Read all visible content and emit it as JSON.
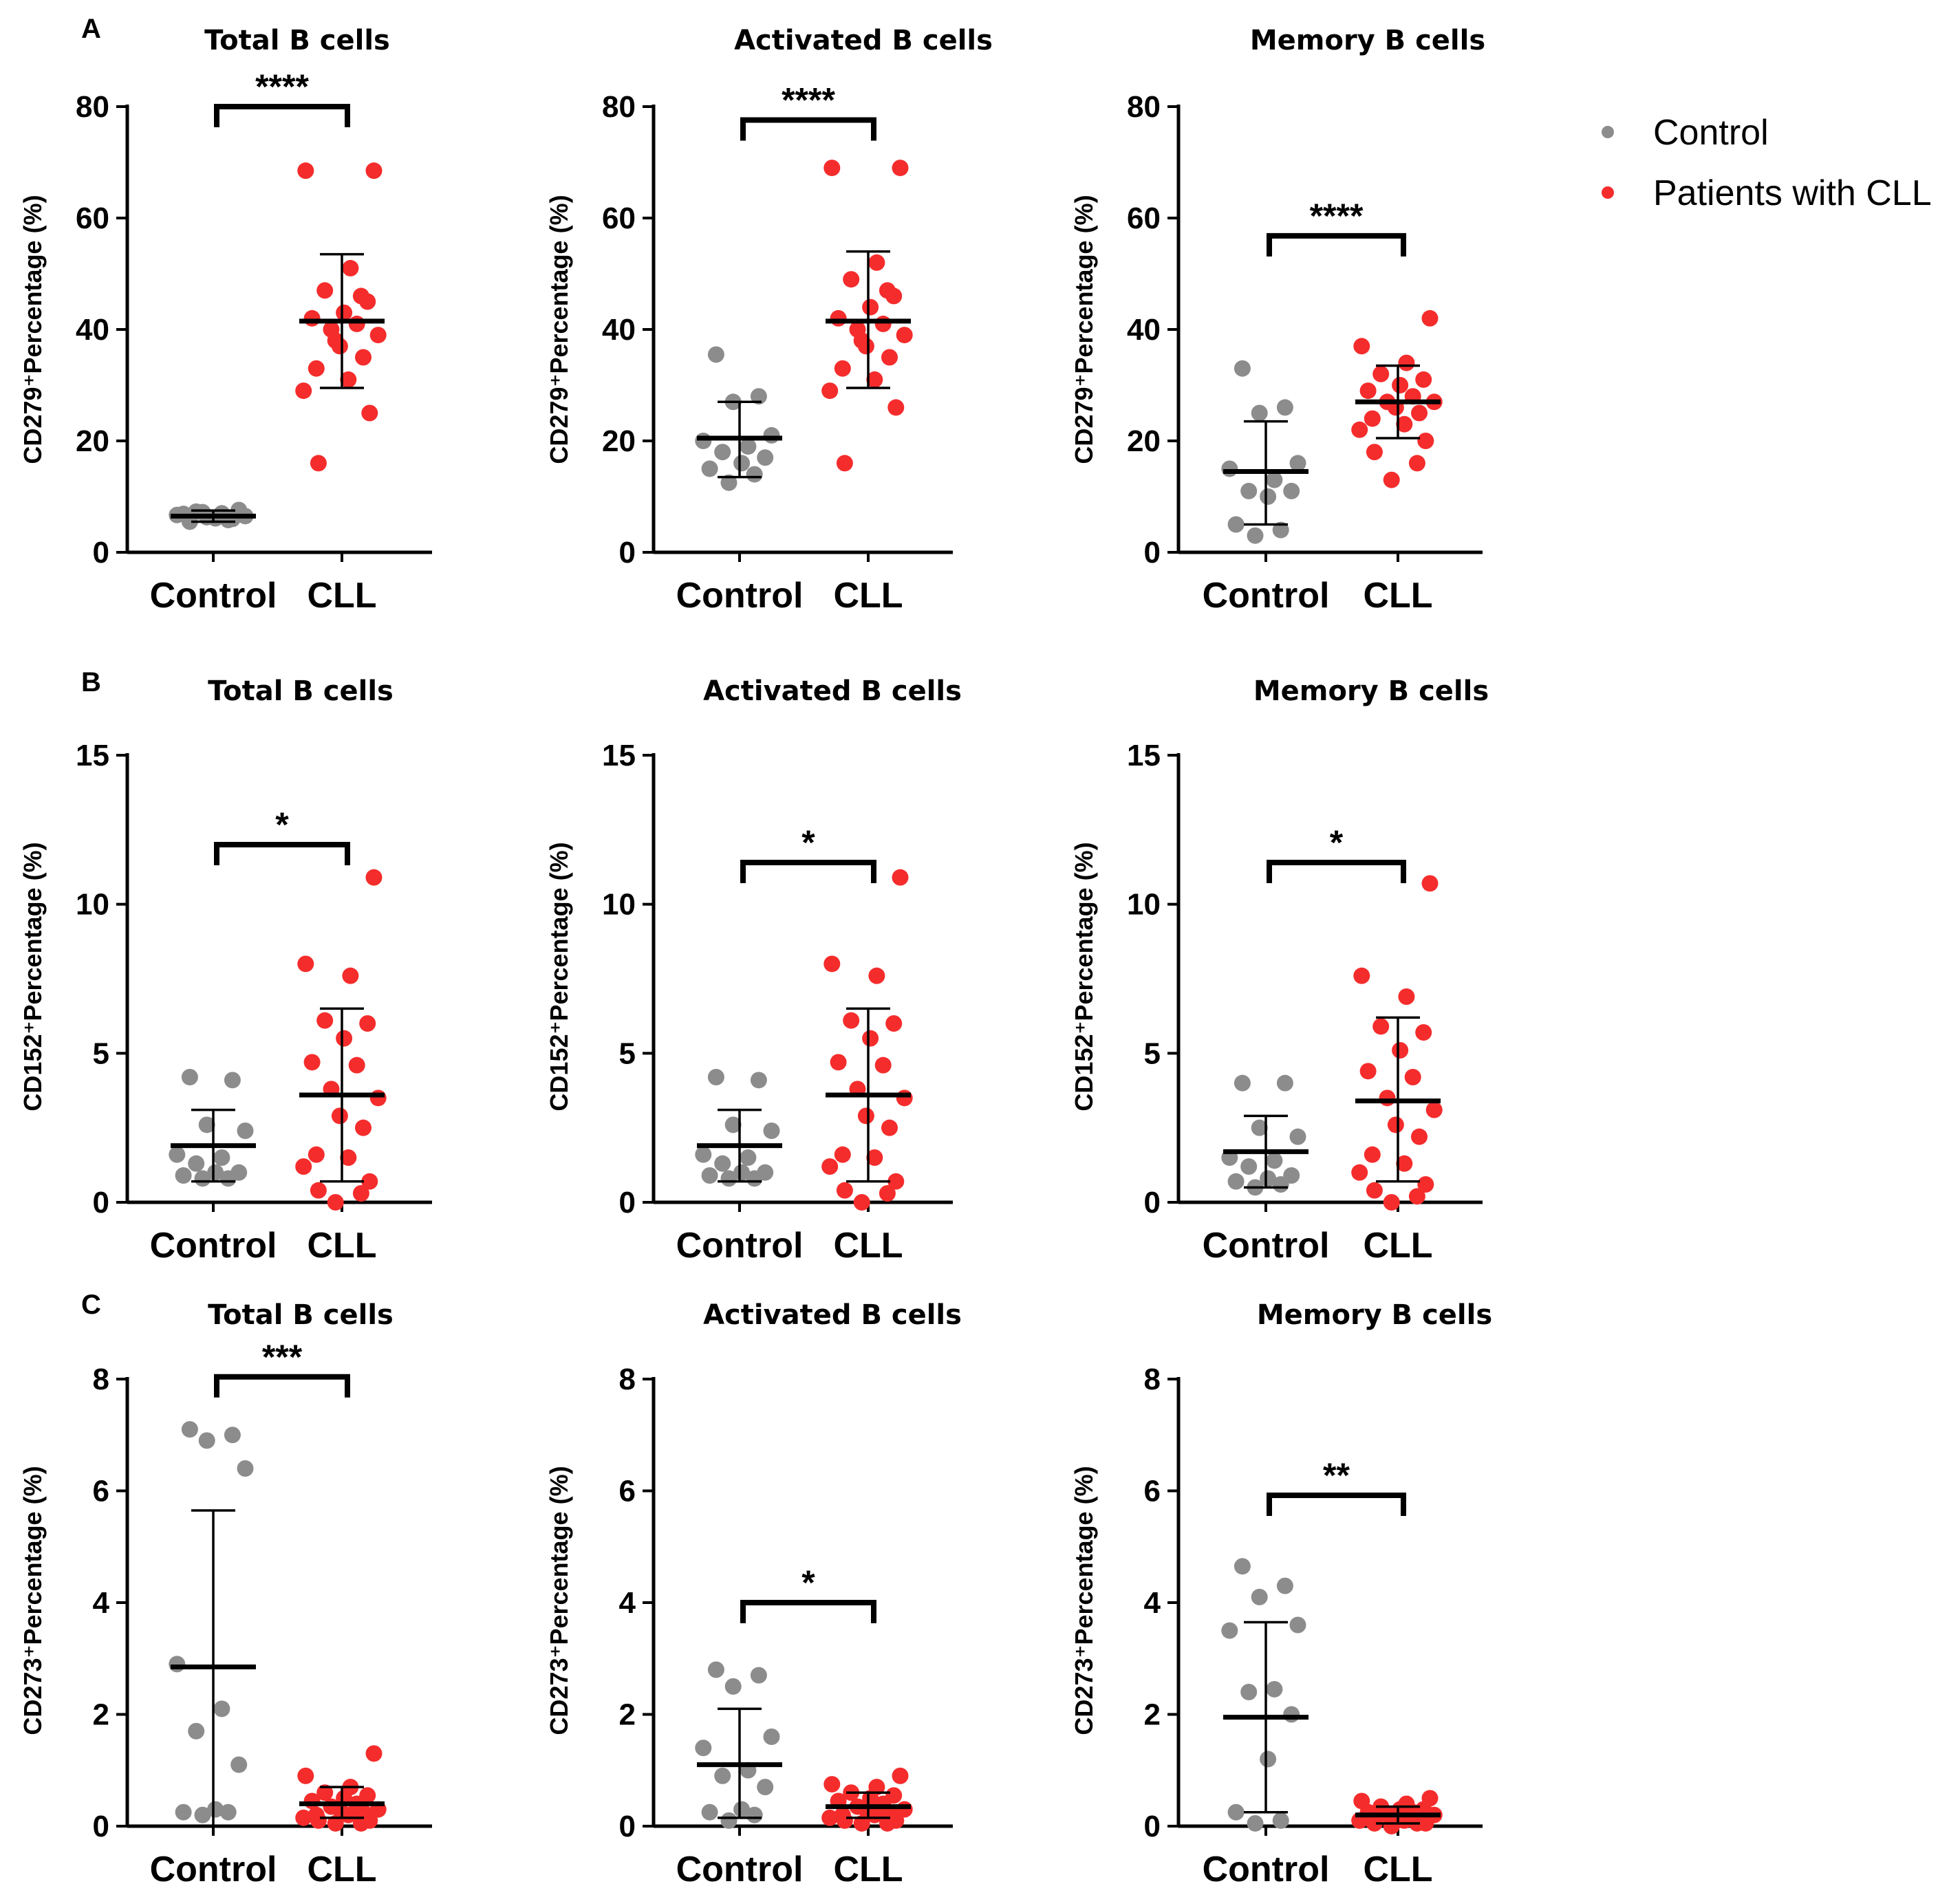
{
  "colors": {
    "control": "#8c8c8c",
    "cll": "#f52c2c",
    "axis": "#000000"
  },
  "legend": {
    "items": [
      {
        "label": "Control",
        "color": "#8c8c8c"
      },
      {
        "label": "Patients with CLL",
        "color": "#f52c2c"
      }
    ]
  },
  "chart_data": [
    {
      "type": "scatter",
      "panel": "A",
      "title": "Total B cells",
      "ylabel": "CD279⁺Percentage (%)",
      "ylim": [
        0,
        80
      ],
      "yticks": [
        0,
        20,
        40,
        60,
        80
      ],
      "categories": [
        "Control",
        "CLL"
      ],
      "significance": "****",
      "series": [
        {
          "name": "Control",
          "mean": 6.5,
          "sd_low": 5.5,
          "sd_high": 7.5,
          "values": [
            5.5,
            6.0,
            6.3,
            6.5,
            6.7,
            7.0,
            7.3,
            7.6,
            6.1,
            6.9,
            5.8,
            7.2
          ]
        },
        {
          "name": "CLL",
          "mean": 41.5,
          "sd_low": 29.5,
          "sd_high": 53.5,
          "values": [
            68.5,
            68.5,
            51,
            47,
            45,
            43,
            42,
            41,
            40,
            39,
            37,
            35,
            33,
            31,
            29,
            25,
            16,
            46,
            38
          ]
        }
      ]
    },
    {
      "type": "scatter",
      "panel": "",
      "title": "Activated B cells",
      "ylabel": "CD279⁺Percentage (%)",
      "ylim": [
        0,
        80
      ],
      "yticks": [
        0,
        20,
        40,
        60,
        80
      ],
      "categories": [
        "Control",
        "CLL"
      ],
      "significance": "****",
      "series": [
        {
          "name": "Control",
          "mean": 20.5,
          "sd_low": 13.5,
          "sd_high": 27.0,
          "values": [
            35.5,
            28,
            27,
            21,
            20,
            19,
            18,
            17,
            16,
            15,
            14,
            12.5
          ]
        },
        {
          "name": "CLL",
          "mean": 41.5,
          "sd_low": 29.5,
          "sd_high": 54.0,
          "values": [
            69,
            69,
            52,
            49,
            46,
            44,
            42,
            41,
            40,
            39,
            37,
            35,
            33,
            31,
            29,
            26,
            16,
            47,
            38
          ]
        }
      ]
    },
    {
      "type": "scatter",
      "panel": "",
      "title": "Memory B cells",
      "ylabel": "CD279⁺Percentage (%)",
      "ylim": [
        0,
        80
      ],
      "yticks": [
        0,
        20,
        40,
        60,
        80
      ],
      "categories": [
        "Control",
        "CLL"
      ],
      "significance": "****",
      "series": [
        {
          "name": "Control",
          "mean": 14.5,
          "sd_low": 5.0,
          "sd_high": 23.5,
          "values": [
            33,
            26,
            25,
            16,
            15,
            13,
            11,
            11,
            10,
            5,
            4,
            3
          ]
        },
        {
          "name": "CLL",
          "mean": 27.0,
          "sd_low": 20.5,
          "sd_high": 33.5,
          "values": [
            42,
            37,
            34,
            32,
            31,
            30,
            29,
            28,
            27,
            27,
            26,
            25,
            24,
            23,
            22,
            20,
            18,
            16,
            13
          ]
        }
      ]
    },
    {
      "type": "scatter",
      "panel": "B",
      "title": "Total B cells",
      "ylabel": "CD152⁺Percentage (%)",
      "ylim": [
        0,
        15
      ],
      "yticks": [
        0,
        5,
        10,
        15
      ],
      "categories": [
        "Control",
        "CLL"
      ],
      "significance": "*",
      "series": [
        {
          "name": "Control",
          "mean": 1.9,
          "sd_low": 0.7,
          "sd_high": 3.1,
          "values": [
            4.2,
            4.1,
            2.6,
            2.4,
            1.6,
            1.5,
            1.3,
            1.0,
            1.0,
            0.9,
            0.8,
            0.8
          ]
        },
        {
          "name": "CLL",
          "mean": 3.6,
          "sd_low": 0.7,
          "sd_high": 6.5,
          "values": [
            10.9,
            8.0,
            7.6,
            6.1,
            6.0,
            5.5,
            4.7,
            4.6,
            3.8,
            3.5,
            2.9,
            2.5,
            1.6,
            1.5,
            1.2,
            0.7,
            0.4,
            0.3,
            0.0
          ]
        }
      ]
    },
    {
      "type": "scatter",
      "panel": "",
      "title": "Activated B cells",
      "ylabel": "CD152⁺Percentage (%)",
      "ylim": [
        0,
        15
      ],
      "yticks": [
        0,
        5,
        10,
        15
      ],
      "categories": [
        "Control",
        "CLL"
      ],
      "significance": "*",
      "series": [
        {
          "name": "Control",
          "mean": 1.9,
          "sd_low": 0.7,
          "sd_high": 3.1,
          "values": [
            4.2,
            4.1,
            2.6,
            2.4,
            1.6,
            1.5,
            1.3,
            1.0,
            1.0,
            0.9,
            0.8,
            0.8
          ]
        },
        {
          "name": "CLL",
          "mean": 3.6,
          "sd_low": 0.7,
          "sd_high": 6.5,
          "values": [
            10.9,
            8.0,
            7.6,
            6.1,
            6.0,
            5.5,
            4.7,
            4.6,
            3.8,
            3.5,
            2.9,
            2.5,
            1.6,
            1.5,
            1.2,
            0.7,
            0.4,
            0.3,
            0.0
          ]
        }
      ]
    },
    {
      "type": "scatter",
      "panel": "",
      "title": "Memory B cells",
      "ylabel": "CD152⁺Percentage (%)",
      "ylim": [
        0,
        15
      ],
      "yticks": [
        0,
        5,
        10,
        15
      ],
      "categories": [
        "Control",
        "CLL"
      ],
      "significance": "*",
      "series": [
        {
          "name": "Control",
          "mean": 1.7,
          "sd_low": 0.5,
          "sd_high": 2.9,
          "values": [
            4.0,
            4.0,
            2.5,
            2.2,
            1.5,
            1.4,
            1.2,
            0.9,
            0.8,
            0.7,
            0.6,
            0.5
          ]
        },
        {
          "name": "CLL",
          "mean": 3.4,
          "sd_low": 0.7,
          "sd_high": 6.2,
          "values": [
            10.7,
            7.6,
            6.9,
            5.9,
            5.7,
            5.1,
            4.4,
            4.2,
            3.5,
            3.1,
            2.6,
            2.2,
            1.6,
            1.3,
            1.0,
            0.6,
            0.4,
            0.2,
            0.0
          ]
        }
      ]
    },
    {
      "type": "scatter",
      "panel": "C",
      "title": "Total B cells",
      "ylabel": "CD273⁺Percentage (%)",
      "ylim": [
        0,
        8
      ],
      "yticks": [
        0,
        2,
        4,
        6,
        8
      ],
      "categories": [
        "Control",
        "CLL"
      ],
      "significance": "***",
      "series": [
        {
          "name": "Control",
          "mean": 2.85,
          "sd_low": 0.0,
          "sd_high": 5.65,
          "values": [
            7.1,
            7.0,
            6.9,
            6.4,
            2.9,
            2.1,
            1.7,
            1.1,
            0.3,
            0.25,
            0.25,
            0.2
          ]
        },
        {
          "name": "CLL",
          "mean": 0.4,
          "sd_low": 0.15,
          "sd_high": 0.7,
          "values": [
            1.3,
            0.9,
            0.7,
            0.6,
            0.55,
            0.5,
            0.45,
            0.4,
            0.35,
            0.3,
            0.3,
            0.25,
            0.2,
            0.2,
            0.15,
            0.1,
            0.1,
            0.05,
            0.05
          ]
        }
      ]
    },
    {
      "type": "scatter",
      "panel": "",
      "title": "Activated B cells",
      "ylabel": "CD273⁺Percentage (%)",
      "ylim": [
        0,
        8
      ],
      "yticks": [
        0,
        2,
        4,
        6,
        8
      ],
      "categories": [
        "Control",
        "CLL"
      ],
      "significance": "*",
      "series": [
        {
          "name": "Control",
          "mean": 1.1,
          "sd_low": 0.15,
          "sd_high": 2.1,
          "values": [
            2.8,
            2.7,
            2.5,
            1.6,
            1.4,
            1.0,
            0.9,
            0.7,
            0.3,
            0.25,
            0.2,
            0.1
          ]
        },
        {
          "name": "CLL",
          "mean": 0.35,
          "sd_low": 0.15,
          "sd_high": 0.6,
          "values": [
            0.9,
            0.75,
            0.7,
            0.6,
            0.55,
            0.5,
            0.45,
            0.4,
            0.35,
            0.3,
            0.3,
            0.25,
            0.2,
            0.2,
            0.15,
            0.1,
            0.1,
            0.05,
            0.05
          ]
        }
      ]
    },
    {
      "type": "scatter",
      "panel": "",
      "title": "Memory B cells",
      "ylabel": "CD273⁺Percentage (%)",
      "ylim": [
        0,
        8
      ],
      "yticks": [
        0,
        2,
        4,
        6,
        8
      ],
      "categories": [
        "Control",
        "CLL"
      ],
      "significance": "**",
      "series": [
        {
          "name": "Control",
          "mean": 1.95,
          "sd_low": 0.25,
          "sd_high": 3.65,
          "values": [
            4.65,
            4.3,
            4.1,
            3.6,
            3.5,
            2.45,
            2.4,
            2.0,
            1.2,
            0.25,
            0.1,
            0.05
          ]
        },
        {
          "name": "CLL",
          "mean": 0.2,
          "sd_low": 0.05,
          "sd_high": 0.35,
          "values": [
            0.5,
            0.45,
            0.4,
            0.35,
            0.3,
            0.3,
            0.25,
            0.25,
            0.2,
            0.2,
            0.15,
            0.15,
            0.1,
            0.1,
            0.1,
            0.05,
            0.05,
            0.05,
            0.0
          ]
        }
      ]
    }
  ]
}
